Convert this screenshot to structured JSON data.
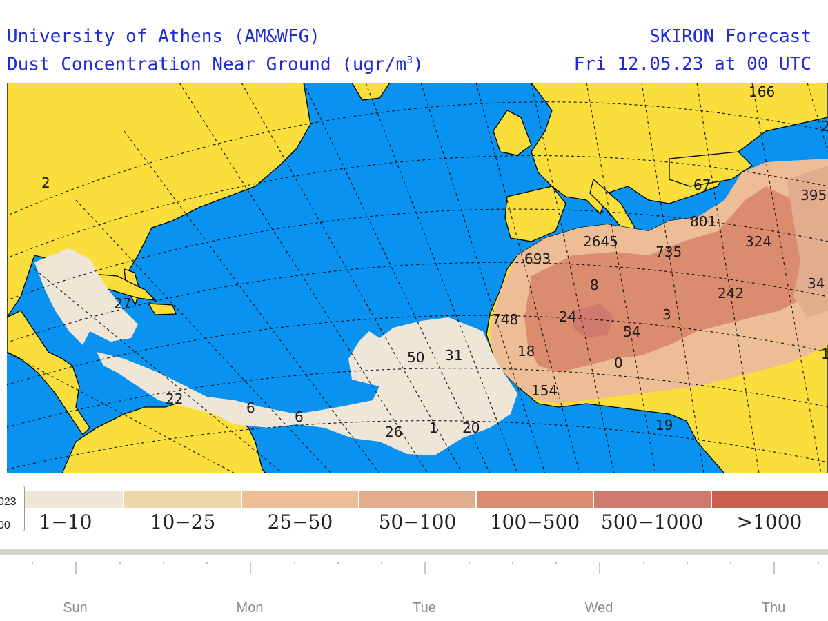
{
  "header": {
    "institution": "University of Athens (AM&WFG)",
    "product_prefix": "Dust Concentration Near Ground (ugr/m",
    "product_sup": "3",
    "product_suffix": ")",
    "model": "SKIRON Forecast",
    "valid_time": "Fri 12.05.23 at 00 UTC"
  },
  "map": {
    "colors": {
      "ocean": "#0a92f0",
      "land": "#fadf3c"
    },
    "labels": [
      "166",
      "2",
      "2",
      "395",
      "67",
      "801",
      "324",
      "2645",
      "735",
      "693",
      "34",
      "8",
      "242",
      "27",
      "748",
      "24",
      "54",
      "3",
      "50",
      "31",
      "18",
      "0",
      "1",
      "22",
      "154",
      "6",
      "6",
      "26",
      "1",
      "20",
      "19"
    ]
  },
  "legend": {
    "items": [
      {
        "label": "1−10",
        "color": "#efe6d8"
      },
      {
        "label": "10−25",
        "color": "#eed7a6"
      },
      {
        "label": "25−50",
        "color": "#edbd96"
      },
      {
        "label": "50−100",
        "color": "#e2ad8f"
      },
      {
        "label": "100−500",
        "color": "#dc8c6e"
      },
      {
        "label": "500−1000",
        "color": "#d07a6d"
      },
      {
        "label": ">1000",
        "color": "#cc5e4e"
      }
    ]
  },
  "date_box": {
    "line1": "023",
    "line2": "00"
  },
  "timeline": {
    "days": [
      "Sun",
      "Mon",
      "Tue",
      "Wed",
      "Thu"
    ]
  }
}
